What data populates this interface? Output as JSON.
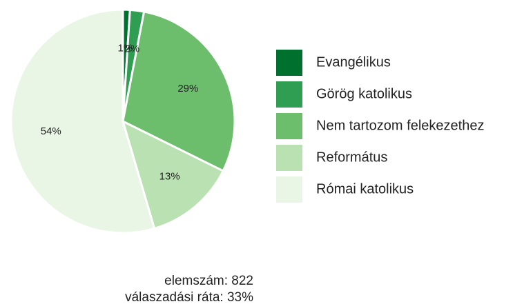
{
  "chart_data": {
    "type": "pie",
    "categories": [
      "Evangélikus",
      "Görög katolikus",
      "Nem tartozom felekezethez",
      "Református",
      "Római katolikus"
    ],
    "values": [
      1,
      2,
      29,
      13,
      54
    ],
    "value_labels": [
      "1%",
      "2%",
      "29%",
      "13%",
      "54%"
    ],
    "colors": [
      "#00702f",
      "#2f9e52",
      "#6cbe6c",
      "#b9e1b1",
      "#eaf6e5"
    ],
    "legend": "right",
    "notes": [
      "elemszám: 822",
      "válaszadási ráta: 33%"
    ]
  }
}
